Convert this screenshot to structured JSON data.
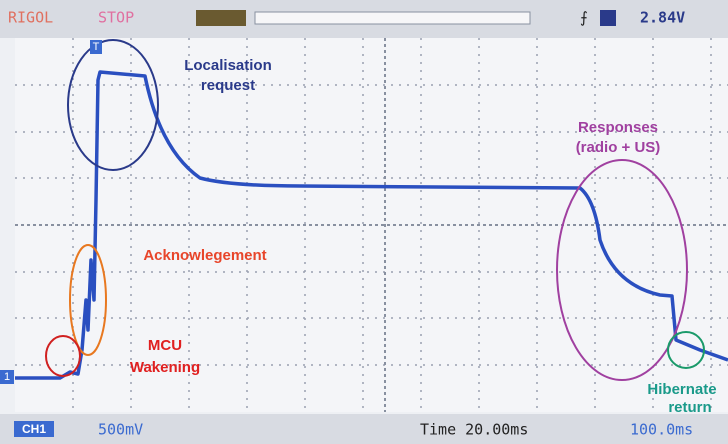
{
  "status_bar": {
    "brand": "RIGOL",
    "state": "STOP",
    "trigger_level": "2.84V",
    "trigger_marker": "T"
  },
  "channel_marker": "1",
  "annotations": {
    "localisation": [
      "Localisation",
      "request"
    ],
    "responses": [
      "Responses",
      "(radio + US)"
    ],
    "acknowledgement": [
      "Acknowlegement"
    ],
    "wakening": [
      "MCU",
      "Wakening"
    ],
    "hibernate": [
      "Hibernate",
      "return"
    ]
  },
  "footer": {
    "channel": "CH1",
    "volts_div": "500mV",
    "timebase": "Time 20.00ms",
    "offset": "100.0ms"
  }
}
